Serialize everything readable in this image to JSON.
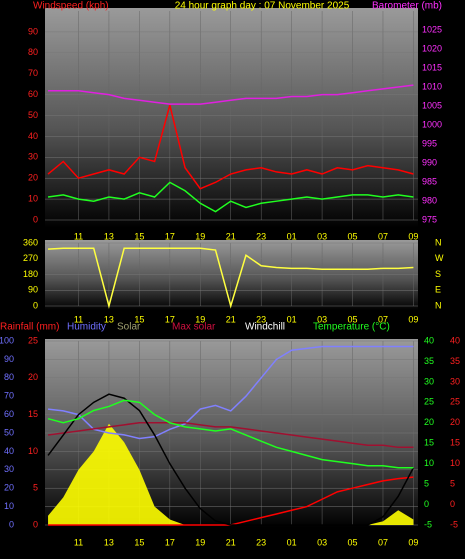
{
  "chart_data": [
    {
      "type": "line",
      "title": "24 hour graph day : 07 November 2025",
      "ylabel": "Windspeed (kph)",
      "y2label": "Barometer (mb)",
      "ylabel_color": "#ff2020",
      "y2label_color": "#ff30ff",
      "x": [
        9,
        10,
        11,
        12,
        13,
        14,
        15,
        16,
        17,
        18,
        19,
        20,
        21,
        22,
        23,
        24,
        25,
        26,
        27,
        28,
        29,
        30,
        31,
        32,
        33
      ],
      "xlim": [
        8.8,
        33.3
      ],
      "xticks": [
        11,
        13,
        15,
        17,
        19,
        21,
        23,
        {
          "value": 25,
          "label": "01"
        },
        {
          "value": 27,
          "label": "03"
        },
        {
          "value": 29,
          "label": "05"
        },
        {
          "value": 31,
          "label": "07"
        },
        {
          "value": 33,
          "label": "09"
        }
      ],
      "ylim": [
        0,
        100
      ],
      "yticks": [
        0,
        10,
        20,
        30,
        40,
        50,
        60,
        70,
        80,
        90
      ],
      "ytick_color": "#ff2020",
      "y2lim": [
        975,
        1030
      ],
      "y2ticks": [
        975,
        980,
        985,
        990,
        995,
        1000,
        1005,
        1010,
        1015,
        1020,
        1025
      ],
      "y2tick_color": "#ff30ff",
      "grid": true,
      "series": [
        {
          "color": "#ff0000",
          "values": [
            22,
            28,
            20,
            22,
            24,
            22,
            30,
            28,
            55,
            25,
            15,
            18,
            22,
            24,
            25,
            23,
            22,
            24,
            22,
            25,
            24,
            26,
            25,
            24,
            22
          ]
        },
        {
          "color": "#20ff20",
          "values": [
            11,
            12,
            10,
            9,
            11,
            10,
            13,
            11,
            18,
            14,
            8,
            4,
            9,
            6,
            8,
            9,
            10,
            11,
            10,
            11,
            12,
            12,
            11,
            12,
            11
          ]
        },
        {
          "color": "#e020e0",
          "axis": "y2",
          "values": [
            1009,
            1009,
            1009,
            1008.5,
            1008,
            1007,
            1006.5,
            1006,
            1005.5,
            1005.5,
            1005.5,
            1006,
            1006.5,
            1007,
            1007,
            1007,
            1007.5,
            1007.5,
            1008,
            1008,
            1008.5,
            1009,
            1009.5,
            1010,
            1010.5
          ]
        }
      ]
    },
    {
      "type": "line",
      "x": [
        9,
        10,
        11,
        12,
        13,
        14,
        15,
        16,
        17,
        18,
        19,
        20,
        21,
        22,
        23,
        24,
        25,
        26,
        27,
        28,
        29,
        30,
        31,
        32,
        33
      ],
      "xlim": [
        8.8,
        33.3
      ],
      "xticks": [
        11,
        13,
        15,
        17,
        19,
        21,
        23,
        {
          "value": 25,
          "label": "01"
        },
        {
          "value": 27,
          "label": "03"
        },
        {
          "value": 29,
          "label": "05"
        },
        {
          "value": 31,
          "label": "07"
        },
        {
          "value": 33,
          "label": "09"
        }
      ],
      "ylim": [
        0,
        360
      ],
      "yticks": [
        0,
        90,
        180,
        270,
        360
      ],
      "ytick_color": "#ffff00",
      "y2lim": [
        0,
        360
      ],
      "y2ticks": [
        {
          "value": 360,
          "label": "N"
        },
        {
          "value": 270,
          "label": "W"
        },
        {
          "value": 180,
          "label": "S"
        },
        {
          "value": 90,
          "label": "E"
        },
        {
          "value": 0,
          "label": "N"
        }
      ],
      "y2tick_color": "#ffff00",
      "grid": true,
      "series": [
        {
          "color": "#ffff40",
          "values": [
            325,
            330,
            330,
            330,
            0,
            330,
            330,
            330,
            330,
            330,
            330,
            320,
            0,
            290,
            230,
            220,
            215,
            215,
            210,
            210,
            210,
            210,
            215,
            215,
            220
          ]
        }
      ]
    },
    {
      "type": "line",
      "x": [
        9,
        10,
        11,
        12,
        13,
        14,
        15,
        16,
        17,
        18,
        19,
        20,
        21,
        22,
        23,
        24,
        25,
        26,
        27,
        28,
        29,
        30,
        31,
        32,
        33
      ],
      "xlim": [
        8.8,
        33.3
      ],
      "xticks": [
        11,
        13,
        15,
        17,
        19,
        21,
        23,
        {
          "value": 25,
          "label": "01"
        },
        {
          "value": 27,
          "label": "03"
        },
        {
          "value": 29,
          "label": "05"
        },
        {
          "value": 31,
          "label": "07"
        },
        {
          "value": 33,
          "label": "09"
        }
      ],
      "ylim": [
        0,
        100
      ],
      "yticks": [
        0,
        10,
        20,
        30,
        40,
        50,
        60,
        70,
        80,
        90,
        100
      ],
      "ytick_color": "#7070ff",
      "y2lim": [
        -5,
        40
      ],
      "y2ticks": [
        -5,
        0,
        5,
        10,
        15,
        20,
        25,
        30,
        35,
        40
      ],
      "y2tick_color": "#20ff20",
      "y2tick_color_outer": "#ff2020",
      "y3lim": [
        0,
        25
      ],
      "y3ticks": [
        0,
        5,
        10,
        15,
        20,
        25
      ],
      "y3tick_color": "#ff2020",
      "grid": true,
      "series": [
        {
          "name": "Rainfall (mm)",
          "axis": "y3",
          "color": "#ff0000",
          "label_color": "#ff2020",
          "values": [
            0,
            0,
            0,
            0,
            0,
            0,
            0,
            0,
            0,
            0,
            0,
            0,
            0,
            0.5,
            1,
            1.5,
            2,
            2.5,
            3.5,
            4.5,
            5,
            5.5,
            6,
            6.3,
            6.5
          ]
        },
        {
          "name": "Humidity",
          "color": "#8080ff",
          "label_color": "#7070ff",
          "values": [
            63,
            62,
            60,
            52,
            50,
            49,
            47,
            48,
            52,
            55,
            63,
            65,
            62,
            70,
            80,
            90,
            95,
            96,
            97,
            97,
            97,
            97,
            97,
            97,
            97
          ]
        },
        {
          "name": "Solar",
          "color": "#ffff00",
          "label_color": "#a0a070",
          "fill": true,
          "values": [
            5,
            15,
            30,
            40,
            55,
            45,
            30,
            10,
            3,
            0,
            0,
            0,
            0,
            0,
            0,
            0,
            0,
            0,
            0,
            0,
            0,
            0,
            2,
            8,
            3
          ]
        },
        {
          "name": "Max solar",
          "axis": "y2",
          "color": "#a01030",
          "label_color": "#d01040",
          "values": [
            17,
            17.5,
            18,
            18.5,
            19,
            19.5,
            20,
            20,
            20,
            20,
            19.5,
            19,
            19,
            18.5,
            18,
            17.5,
            17,
            16.5,
            16,
            15.5,
            15,
            14.5,
            14.5,
            14,
            14
          ]
        },
        {
          "name": "Windchill",
          "axis": "y2",
          "color": "#000000",
          "label_color": "#ffffff",
          "values": [
            12,
            17,
            22,
            25,
            27,
            26,
            23,
            17,
            10,
            4,
            -1,
            -4,
            -5,
            -5,
            -5,
            -5,
            -5,
            -5,
            -5,
            -5,
            -5,
            -5,
            -3,
            2,
            9
          ]
        },
        {
          "name": "Temperature (°C)",
          "axis": "y2",
          "color": "#20ff20",
          "label_color": "#20ff20",
          "values": [
            21,
            20,
            21,
            23,
            24,
            25.5,
            25,
            22,
            20,
            19,
            18.5,
            18,
            18.5,
            17,
            15.5,
            14,
            13,
            12,
            11,
            10.5,
            10,
            9.5,
            9.5,
            9,
            9
          ]
        }
      ]
    }
  ]
}
